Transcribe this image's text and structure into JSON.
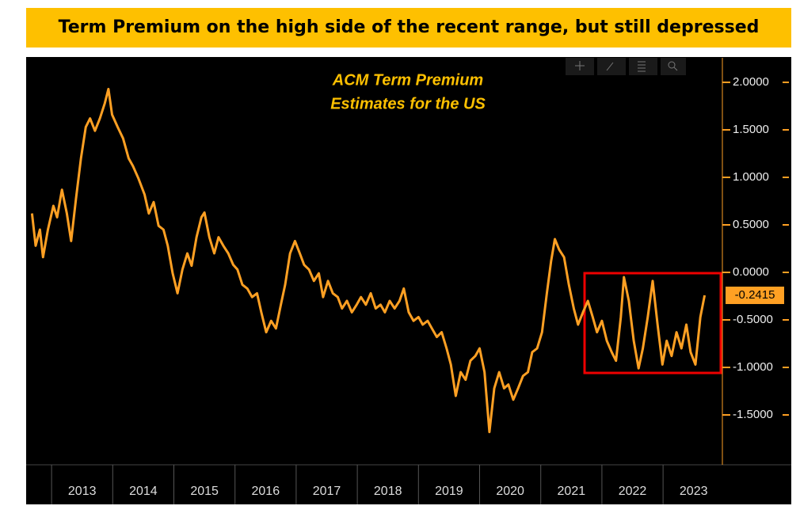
{
  "chart_data": {
    "type": "line",
    "title": "Term Premium on the high side of the recent range, but still depressed",
    "annotation": [
      "ACM Term Premium",
      "Estimates for the US"
    ],
    "color": "#ffa023",
    "x": [
      2012.68,
      2012.74,
      2012.81,
      2012.86,
      2012.94,
      2013.03,
      2013.09,
      2013.17,
      2013.25,
      2013.32,
      2013.4,
      2013.48,
      2013.56,
      2013.63,
      2013.71,
      2013.79,
      2013.87,
      2013.93,
      2013.99,
      2014.08,
      2014.17,
      2014.26,
      2014.33,
      2014.42,
      2014.52,
      2014.59,
      2014.67,
      2014.75,
      2014.83,
      2014.9,
      2014.98,
      2015.06,
      2015.14,
      2015.22,
      2015.29,
      2015.37,
      2015.45,
      2015.5,
      2015.58,
      2015.66,
      2015.73,
      2015.81,
      2015.89,
      2015.97,
      2016.04,
      2016.12,
      2016.2,
      2016.28,
      2016.36,
      2016.43,
      2016.51,
      2016.59,
      2016.67,
      2016.75,
      2016.82,
      2016.9,
      2016.98,
      2017.06,
      2017.13,
      2017.21,
      2017.29,
      2017.37,
      2017.44,
      2017.52,
      2017.6,
      2017.68,
      2017.75,
      2017.83,
      2017.91,
      2017.99,
      2018.06,
      2018.14,
      2018.22,
      2018.3,
      2018.38,
      2018.45,
      2018.53,
      2018.61,
      2018.69,
      2018.76,
      2018.84,
      2018.92,
      2019.0,
      2019.07,
      2019.15,
      2019.22,
      2019.3,
      2019.38,
      2019.46,
      2019.53,
      2019.61,
      2019.69,
      2019.77,
      2019.85,
      2019.93,
      2020.0,
      2020.08,
      2020.16,
      2020.24,
      2020.32,
      2020.4,
      2020.47,
      2020.55,
      2020.63,
      2020.71,
      2020.79,
      2020.86,
      2020.94,
      2021.02,
      2021.1,
      2021.17,
      2021.23,
      2021.3,
      2021.38,
      2021.46,
      2021.54,
      2021.61,
      2021.69,
      2021.77,
      2021.85,
      2021.92,
      2022.0,
      2022.08,
      2022.16,
      2022.23,
      2022.31,
      2022.36,
      2022.44,
      2022.52,
      2022.6,
      2022.67,
      2022.75,
      2022.83,
      2022.91,
      2022.99,
      2023.06,
      2023.14,
      2023.22,
      2023.3,
      2023.38,
      2023.45,
      2023.53,
      2023.61,
      2023.68
    ],
    "values": [
      0.62,
      0.28,
      0.45,
      0.16,
      0.45,
      0.7,
      0.58,
      0.87,
      0.62,
      0.33,
      0.78,
      1.2,
      1.53,
      1.62,
      1.49,
      1.62,
      1.78,
      1.93,
      1.66,
      1.53,
      1.41,
      1.2,
      1.12,
      0.99,
      0.82,
      0.62,
      0.74,
      0.49,
      0.45,
      0.28,
      -0.01,
      -0.22,
      0.03,
      0.2,
      0.07,
      0.37,
      0.58,
      0.63,
      0.37,
      0.2,
      0.37,
      0.28,
      0.2,
      0.08,
      0.03,
      -0.13,
      -0.17,
      -0.26,
      -0.22,
      -0.42,
      -0.63,
      -0.51,
      -0.59,
      -0.34,
      -0.13,
      0.2,
      0.33,
      0.2,
      0.08,
      0.03,
      -0.09,
      -0.01,
      -0.26,
      -0.09,
      -0.22,
      -0.26,
      -0.38,
      -0.3,
      -0.42,
      -0.34,
      -0.26,
      -0.34,
      -0.22,
      -0.38,
      -0.34,
      -0.42,
      -0.3,
      -0.38,
      -0.3,
      -0.17,
      -0.42,
      -0.51,
      -0.47,
      -0.55,
      -0.51,
      -0.59,
      -0.68,
      -0.63,
      -0.8,
      -0.97,
      -1.3,
      -1.05,
      -1.13,
      -0.93,
      -0.88,
      -0.8,
      -1.05,
      -1.68,
      -1.22,
      -1.05,
      -1.22,
      -1.18,
      -1.34,
      -1.22,
      -1.09,
      -1.05,
      -0.84,
      -0.8,
      -0.63,
      -0.22,
      0.12,
      0.35,
      0.24,
      0.16,
      -0.13,
      -0.38,
      -0.55,
      -0.42,
      -0.3,
      -0.47,
      -0.63,
      -0.51,
      -0.72,
      -0.84,
      -0.93,
      -0.47,
      -0.05,
      -0.3,
      -0.72,
      -1.01,
      -0.8,
      -0.47,
      -0.09,
      -0.55,
      -0.97,
      -0.72,
      -0.88,
      -0.63,
      -0.8,
      -0.55,
      -0.84,
      -0.97,
      -0.47,
      -0.2415
    ],
    "last_value_label": "-0.2415",
    "xlim": [
      2012.61,
      2023.97
    ],
    "xticks": [
      2013,
      2014,
      2015,
      2016,
      2017,
      2018,
      2019,
      2020,
      2021,
      2022,
      2023
    ],
    "ylim": [
      -2.008,
      2.258
    ],
    "yticks": [
      {
        "value": 2,
        "label": "2.0000"
      },
      {
        "value": 1.5,
        "label": "1.5000"
      },
      {
        "value": 1,
        "label": "1.0000"
      },
      {
        "value": 0.5,
        "label": "0.5000"
      },
      {
        "value": 0,
        "label": "0.0000"
      },
      {
        "value": -0.5,
        "label": "-0.5000"
      },
      {
        "value": -1,
        "label": "-1.0000"
      },
      {
        "value": -1.5,
        "label": "-1.5000"
      }
    ]
  }
}
